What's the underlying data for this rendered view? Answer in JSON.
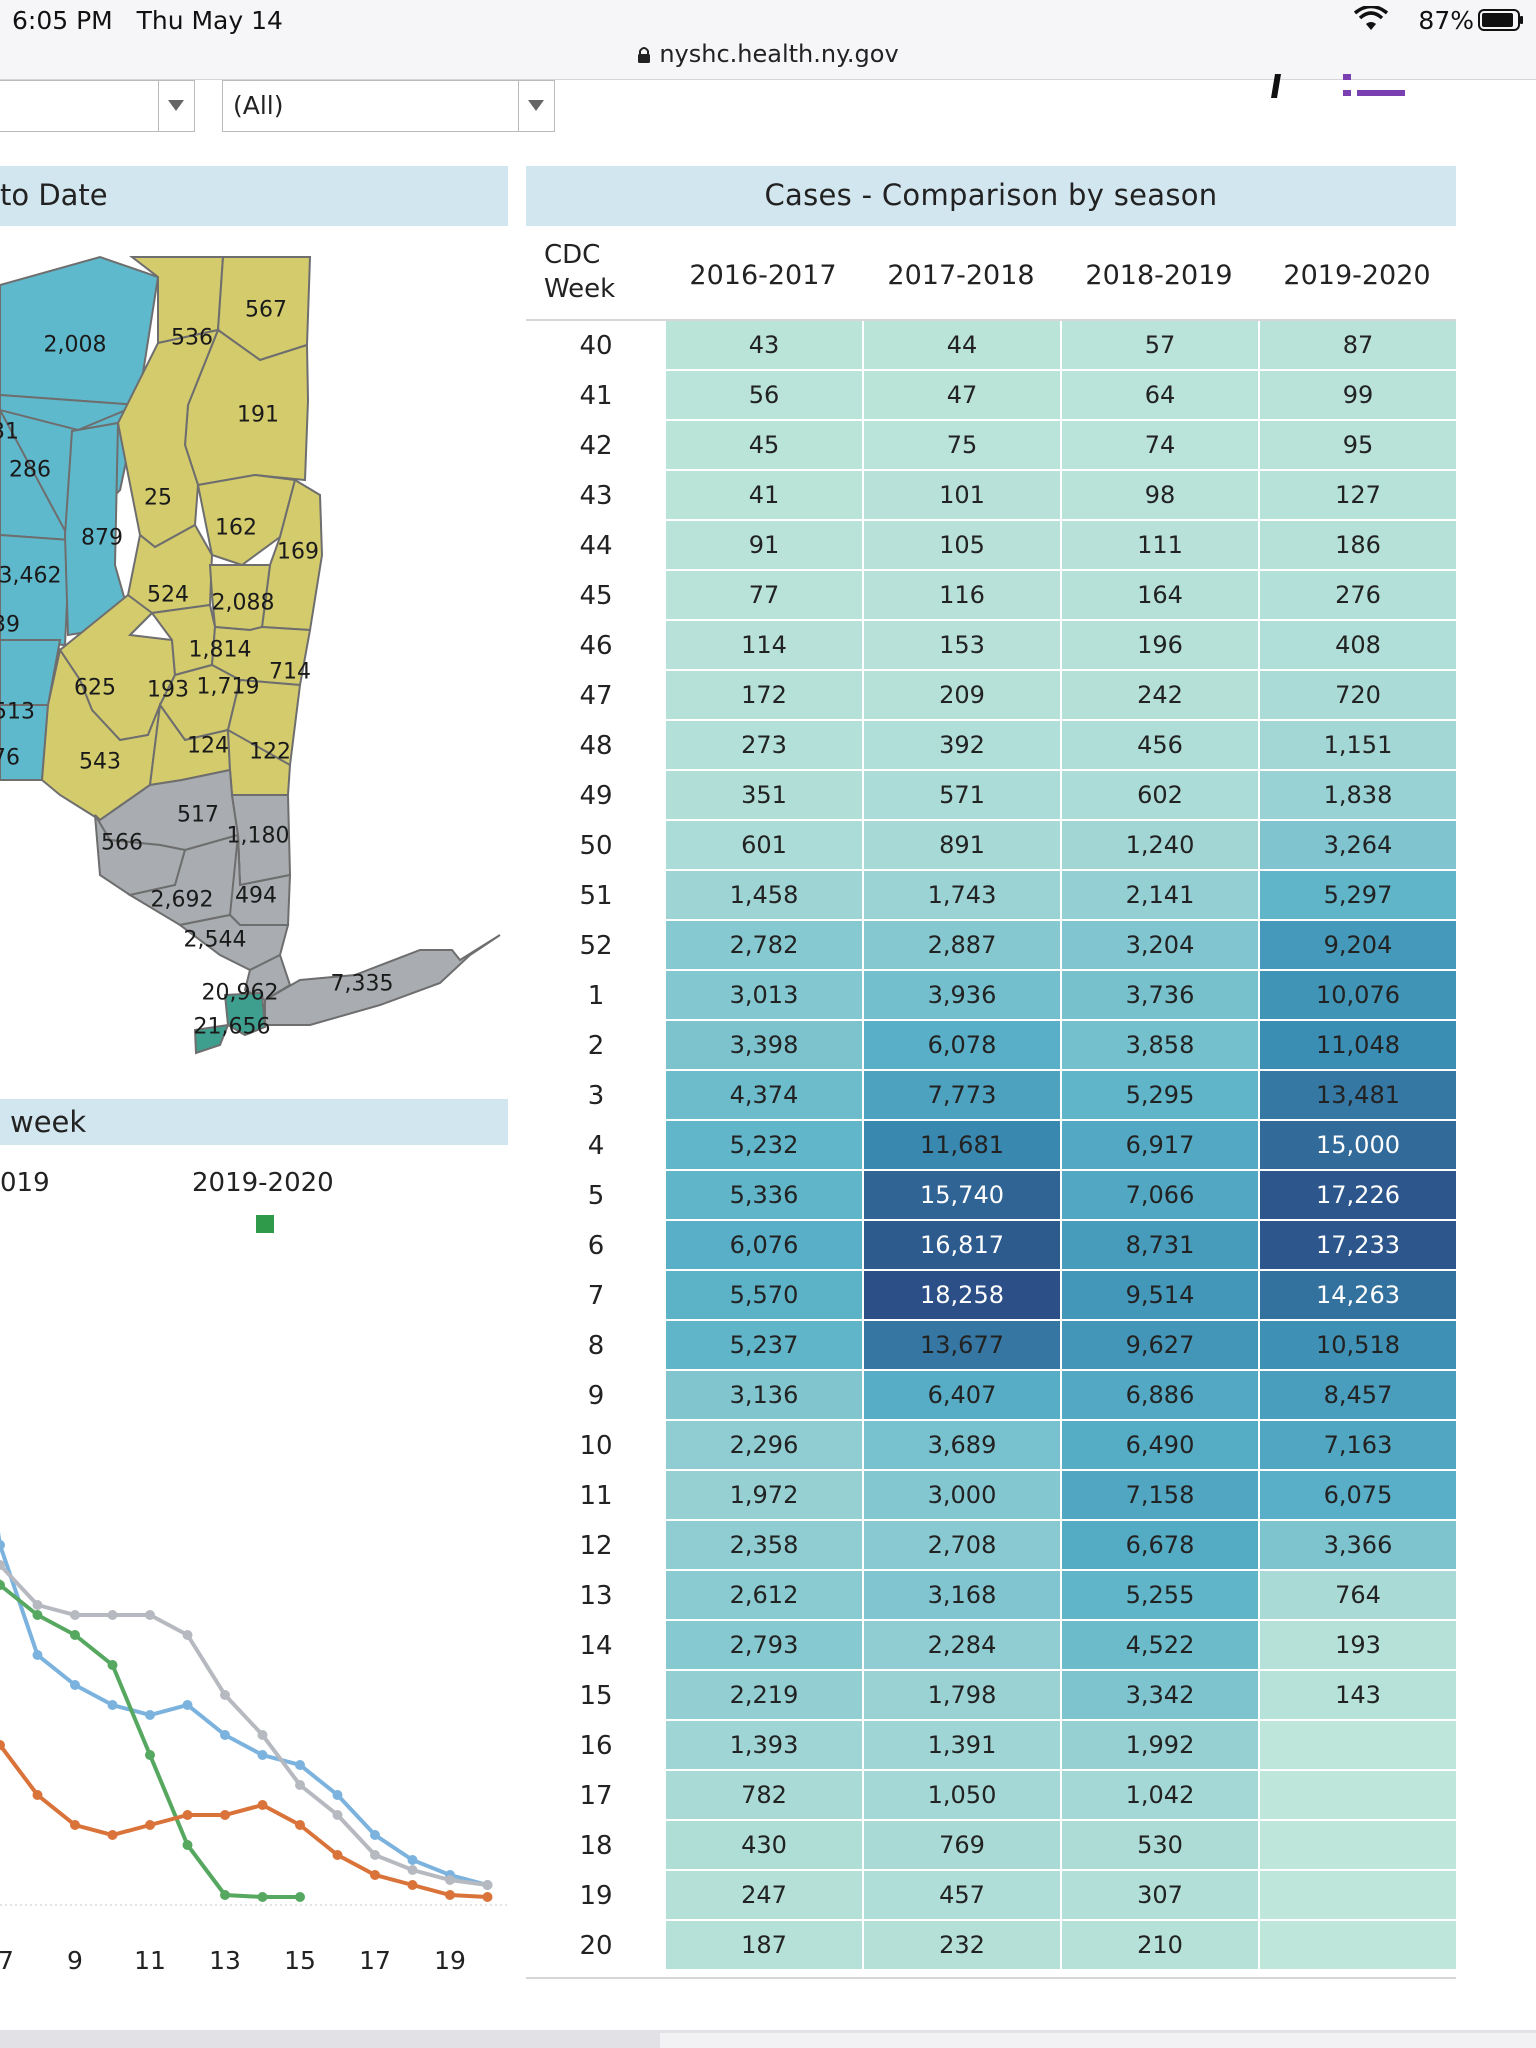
{
  "status_bar": {
    "time": "6:05 PM",
    "day": "Thu May 14",
    "battery": "87%"
  },
  "browser": {
    "url": "nyshc.health.ny.gov"
  },
  "filters": {
    "filter_1_value": "",
    "filter_2_value": "(All)"
  },
  "map_panel": {
    "title": "to Date",
    "labels": [
      "2,008",
      "536",
      "567",
      "191",
      "31",
      "286",
      "25",
      "162",
      "169",
      "879",
      "3,462",
      "524",
      "2,088",
      "39",
      "1,814",
      "714",
      "625",
      "193",
      "1,719",
      "513",
      "543",
      "124",
      "122",
      "76",
      "517",
      "1,180",
      "566",
      "2,692",
      "494",
      "2,544",
      "20,962",
      "7,335",
      "21,656"
    ],
    "colors": {
      "region_blue": "#5fb9cd",
      "region_yellow": "#d3cb6c",
      "region_gray": "#a9adb1",
      "nyc_teal": "#3f9f8f"
    }
  },
  "line_panel": {
    "title": "week",
    "legend": [
      "019",
      "2019-2020"
    ],
    "x_ticks": [
      "7",
      "9",
      "11",
      "13",
      "15",
      "17",
      "19"
    ]
  },
  "chart_data": {
    "type": "line",
    "x_ticks": [
      "7",
      "9",
      "11",
      "13",
      "15",
      "17",
      "19"
    ],
    "series": [
      {
        "color": "#7bb3de",
        "x": [
          5,
          6,
          7,
          8,
          9,
          10,
          11,
          12,
          13,
          14,
          15,
          16,
          17,
          18,
          19,
          20
        ],
        "values": [
          0.7,
          0.6,
          0.36,
          0.25,
          0.22,
          0.2,
          0.19,
          0.2,
          0.17,
          0.15,
          0.14,
          0.11,
          0.07,
          0.045,
          0.03,
          0.02
        ]
      },
      {
        "color": "#56a860",
        "x": [
          5,
          6,
          7,
          8,
          9,
          10,
          11,
          12,
          13,
          14,
          15
        ],
        "values": [
          0.58,
          0.44,
          0.32,
          0.29,
          0.27,
          0.24,
          0.15,
          0.06,
          0.01,
          0.008,
          0.008
        ]
      },
      {
        "color": "#b6bac0",
        "x": [
          5,
          6,
          7,
          8,
          9,
          10,
          11,
          12,
          13,
          14,
          15,
          16,
          17,
          18,
          19,
          20
        ],
        "values": [
          0.37,
          0.37,
          0.34,
          0.3,
          0.29,
          0.29,
          0.29,
          0.27,
          0.21,
          0.17,
          0.12,
          0.09,
          0.05,
          0.035,
          0.025,
          0.02
        ]
      },
      {
        "color": "#d9733a",
        "x": [
          5,
          6,
          7,
          8,
          9,
          10,
          11,
          12,
          13,
          14,
          15,
          16,
          17,
          18,
          19,
          20
        ],
        "values": [
          0.2,
          0.17,
          0.16,
          0.11,
          0.08,
          0.07,
          0.08,
          0.09,
          0.09,
          0.1,
          0.08,
          0.05,
          0.03,
          0.02,
          0.01,
          0.008
        ]
      }
    ]
  },
  "table": {
    "title": "Cases  - Comparison by season",
    "week_header": [
      "CDC",
      "Week"
    ],
    "seasons": [
      "2016-2017",
      "2017-2018",
      "2018-2019",
      "2019-2020"
    ],
    "rows": [
      {
        "week": "40",
        "values": [
          "43",
          "44",
          "57",
          "87"
        ]
      },
      {
        "week": "41",
        "values": [
          "56",
          "47",
          "64",
          "99"
        ]
      },
      {
        "week": "42",
        "values": [
          "45",
          "75",
          "74",
          "95"
        ]
      },
      {
        "week": "43",
        "values": [
          "41",
          "101",
          "98",
          "127"
        ]
      },
      {
        "week": "44",
        "values": [
          "91",
          "105",
          "111",
          "186"
        ]
      },
      {
        "week": "45",
        "values": [
          "77",
          "116",
          "164",
          "276"
        ]
      },
      {
        "week": "46",
        "values": [
          "114",
          "153",
          "196",
          "408"
        ]
      },
      {
        "week": "47",
        "values": [
          "172",
          "209",
          "242",
          "720"
        ]
      },
      {
        "week": "48",
        "values": [
          "273",
          "392",
          "456",
          "1,151"
        ]
      },
      {
        "week": "49",
        "values": [
          "351",
          "571",
          "602",
          "1,838"
        ]
      },
      {
        "week": "50",
        "values": [
          "601",
          "891",
          "1,240",
          "3,264"
        ]
      },
      {
        "week": "51",
        "values": [
          "1,458",
          "1,743",
          "2,141",
          "5,297"
        ]
      },
      {
        "week": "52",
        "values": [
          "2,782",
          "2,887",
          "3,204",
          "9,204"
        ]
      },
      {
        "week": "1",
        "values": [
          "3,013",
          "3,936",
          "3,736",
          "10,076"
        ]
      },
      {
        "week": "2",
        "values": [
          "3,398",
          "6,078",
          "3,858",
          "11,048"
        ]
      },
      {
        "week": "3",
        "values": [
          "4,374",
          "7,773",
          "5,295",
          "13,481"
        ]
      },
      {
        "week": "4",
        "values": [
          "5,232",
          "11,681",
          "6,917",
          "15,000"
        ]
      },
      {
        "week": "5",
        "values": [
          "5,336",
          "15,740",
          "7,066",
          "17,226"
        ]
      },
      {
        "week": "6",
        "values": [
          "6,076",
          "16,817",
          "8,731",
          "17,233"
        ]
      },
      {
        "week": "7",
        "values": [
          "5,570",
          "18,258",
          "9,514",
          "14,263"
        ]
      },
      {
        "week": "8",
        "values": [
          "5,237",
          "13,677",
          "9,627",
          "10,518"
        ]
      },
      {
        "week": "9",
        "values": [
          "3,136",
          "6,407",
          "6,886",
          "8,457"
        ]
      },
      {
        "week": "10",
        "values": [
          "2,296",
          "3,689",
          "6,490",
          "7,163"
        ]
      },
      {
        "week": "11",
        "values": [
          "1,972",
          "3,000",
          "7,158",
          "6,075"
        ]
      },
      {
        "week": "12",
        "values": [
          "2,358",
          "2,708",
          "6,678",
          "3,366"
        ]
      },
      {
        "week": "13",
        "values": [
          "2,612",
          "3,168",
          "5,255",
          "764"
        ]
      },
      {
        "week": "14",
        "values": [
          "2,793",
          "2,284",
          "4,522",
          "193"
        ]
      },
      {
        "week": "15",
        "values": [
          "2,219",
          "1,798",
          "3,342",
          "143"
        ]
      },
      {
        "week": "16",
        "values": [
          "1,393",
          "1,391",
          "1,992",
          ""
        ]
      },
      {
        "week": "17",
        "values": [
          "782",
          "1,050",
          "1,042",
          ""
        ]
      },
      {
        "week": "18",
        "values": [
          "430",
          "769",
          "530",
          ""
        ]
      },
      {
        "week": "19",
        "values": [
          "247",
          "457",
          "307",
          ""
        ]
      },
      {
        "week": "20",
        "values": [
          "187",
          "232",
          "210",
          ""
        ]
      }
    ],
    "colors": {
      "low": "#bfe6da",
      "mid": "#5fb9cd",
      "high": "#2b4f86"
    }
  }
}
